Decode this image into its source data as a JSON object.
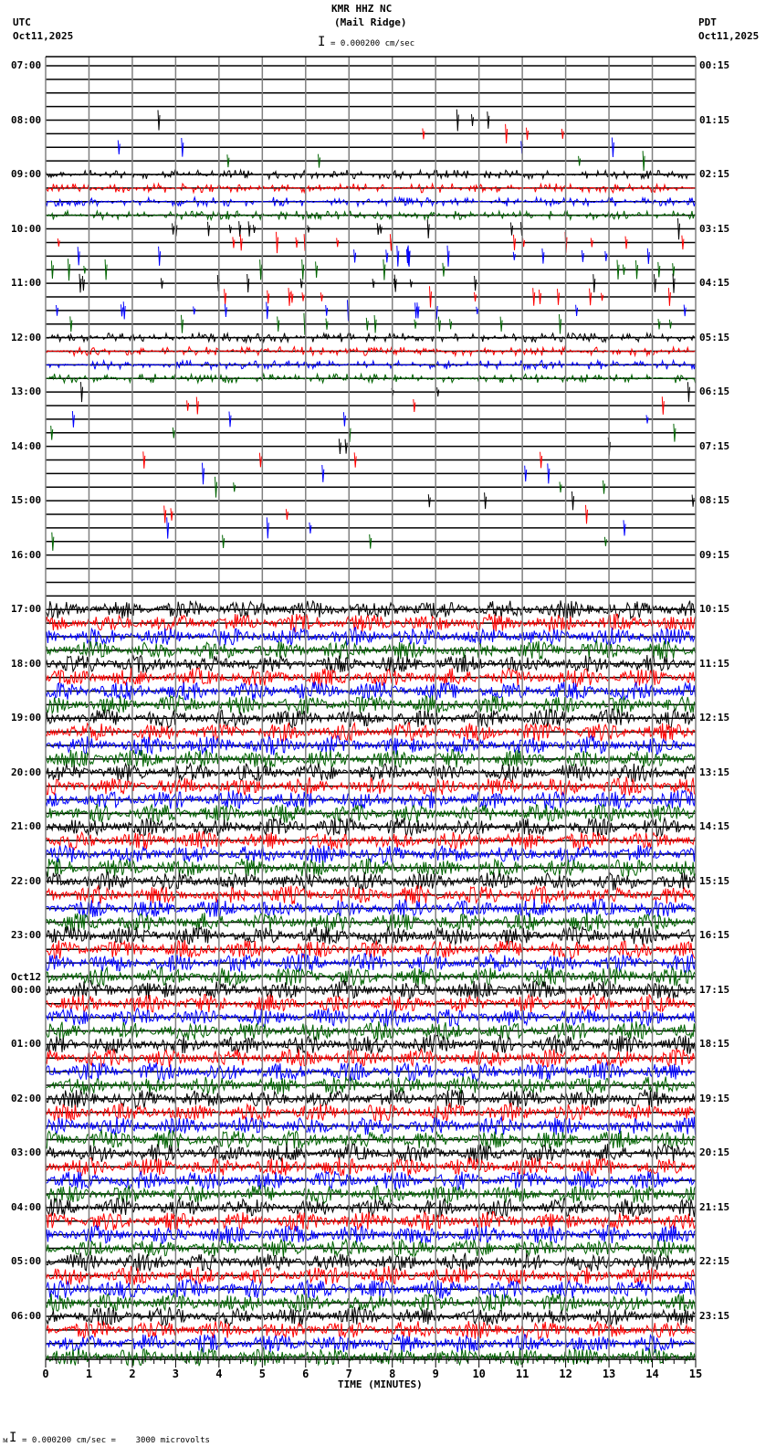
{
  "header": {
    "station": "KMR HHZ NC",
    "location": "(Mail Ridge)",
    "scale_text": "= 0.000200 cm/sec",
    "left_tz": "UTC",
    "left_date": "Oct11,2025",
    "right_tz": "PDT",
    "right_date": "Oct11,2025"
  },
  "footer": {
    "scale_text": "= 0.000200 cm/sec =    3000 microvolts"
  },
  "colors": {
    "trace": [
      "#000000",
      "#ff0000",
      "#0000ff",
      "#006400"
    ],
    "grid": "#808080"
  },
  "chart_data": {
    "type": "line",
    "title": "KMR HHZ NC (Mail Ridge)",
    "xlabel": "TIME (MINUTES)",
    "ylabel": "",
    "xlim": [
      0,
      15
    ],
    "x_ticks": [
      "0",
      "1",
      "2",
      "3",
      "4",
      "5",
      "6",
      "7",
      "8",
      "9",
      "10",
      "11",
      "12",
      "13",
      "14",
      "15"
    ],
    "left_labels": [
      "07:00",
      "08:00",
      "09:00",
      "10:00",
      "11:00",
      "12:00",
      "13:00",
      "14:00",
      "15:00",
      "16:00",
      "17:00",
      "18:00",
      "19:00",
      "20:00",
      "21:00",
      "22:00",
      "23:00",
      "Oct12",
      "00:00",
      "01:00",
      "02:00",
      "03:00",
      "04:00",
      "05:00",
      "06:00"
    ],
    "right_labels": [
      "00:15",
      "01:15",
      "02:15",
      "03:15",
      "04:15",
      "05:15",
      "06:15",
      "07:15",
      "08:15",
      "09:15",
      "10:15",
      "11:15",
      "12:15",
      "13:15",
      "14:15",
      "15:15",
      "16:15",
      "17:15",
      "18:15",
      "19:15",
      "20:15",
      "21:15",
      "22:15",
      "23:15"
    ],
    "rows_per_hour": 4,
    "num_rows": 96,
    "series_color_cycle": [
      "black",
      "red",
      "blue",
      "green"
    ],
    "activity_by_hour": [
      0,
      1,
      3,
      2,
      2,
      3,
      1,
      1,
      1,
      0,
      4,
      4,
      4,
      4,
      4,
      4,
      4,
      4,
      4,
      4,
      4,
      4,
      4,
      4
    ]
  }
}
